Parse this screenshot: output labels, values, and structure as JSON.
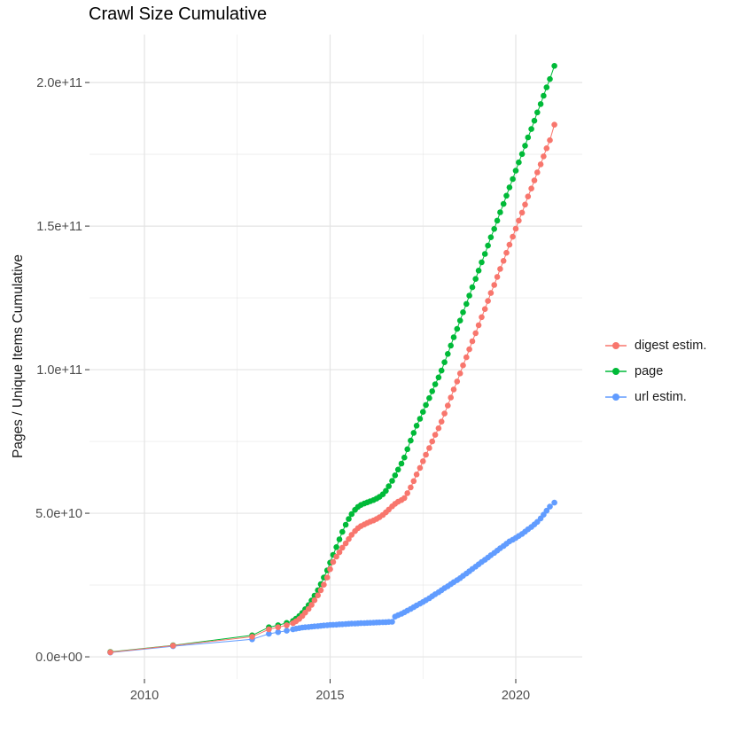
{
  "chart_data": {
    "type": "line",
    "title": "Crawl Size Cumulative",
    "xlabel": "",
    "ylabel": "Pages / Unique Items Cumulative",
    "legend_position": "right",
    "grid": true,
    "value_unit_exponent": 9,
    "x_axis": {
      "ticks": [
        2010,
        2015,
        2020
      ],
      "tick_labels": [
        "2010",
        "2015",
        "2020"
      ],
      "minor_ticks": [
        2012.5,
        2017.5
      ],
      "range": [
        2008.52,
        2021.79
      ]
    },
    "y_axis": {
      "ticks": [
        0,
        50,
        100,
        150,
        200
      ],
      "tick_labels": [
        "0.0e+00",
        "5.0e+10",
        "1.0e+11",
        "1.5e+11",
        "2.0e+11"
      ],
      "minor_ticks": [
        25,
        75,
        125,
        175
      ],
      "range": [
        -7.7,
        216.7
      ]
    },
    "series": [
      {
        "name": "digest estim.",
        "color": "#F8766D",
        "points": [
          [
            2009.08,
            1.6
          ],
          [
            2010.77,
            3.9
          ],
          [
            2012.9,
            7.0
          ],
          [
            2013.35,
            9.6
          ],
          [
            2013.6,
            10.3
          ],
          [
            2013.83,
            11.0
          ],
          [
            2014.0,
            11.7
          ],
          [
            2014.08,
            12.4
          ],
          [
            2014.17,
            13.2
          ],
          [
            2014.25,
            14.2
          ],
          [
            2014.33,
            15.4
          ],
          [
            2014.42,
            16.7
          ],
          [
            2014.5,
            18.1
          ],
          [
            2014.58,
            19.7
          ],
          [
            2014.67,
            21.4
          ],
          [
            2014.75,
            23.2
          ],
          [
            2014.83,
            25.1
          ],
          [
            2014.92,
            27.6
          ],
          [
            2015.0,
            30.5
          ],
          [
            2015.08,
            33.0
          ],
          [
            2015.17,
            34.9
          ],
          [
            2015.25,
            36.4
          ],
          [
            2015.33,
            38.0
          ],
          [
            2015.42,
            39.5
          ],
          [
            2015.5,
            41.0
          ],
          [
            2015.58,
            42.5
          ],
          [
            2015.67,
            43.8
          ],
          [
            2015.75,
            44.8
          ],
          [
            2015.83,
            45.5
          ],
          [
            2015.92,
            46.1
          ],
          [
            2016.0,
            46.6
          ],
          [
            2016.08,
            47.1
          ],
          [
            2016.17,
            47.5
          ],
          [
            2016.25,
            48.0
          ],
          [
            2016.33,
            48.6
          ],
          [
            2016.42,
            49.4
          ],
          [
            2016.5,
            50.3
          ],
          [
            2016.58,
            51.3
          ],
          [
            2016.67,
            52.4
          ],
          [
            2016.75,
            53.3
          ],
          [
            2016.83,
            54.0
          ],
          [
            2016.92,
            54.6
          ],
          [
            2017.0,
            55.3
          ],
          [
            2017.08,
            57.0
          ],
          [
            2017.17,
            59.0
          ],
          [
            2017.25,
            61.2
          ],
          [
            2017.33,
            63.5
          ],
          [
            2017.42,
            65.8
          ],
          [
            2017.5,
            68.1
          ],
          [
            2017.58,
            70.4
          ],
          [
            2017.67,
            72.7
          ],
          [
            2017.75,
            75.0
          ],
          [
            2017.83,
            77.3
          ],
          [
            2017.92,
            79.6
          ],
          [
            2018.0,
            81.9
          ],
          [
            2018.08,
            84.7
          ],
          [
            2018.17,
            87.5
          ],
          [
            2018.25,
            90.3
          ],
          [
            2018.33,
            93.1
          ],
          [
            2018.42,
            95.9
          ],
          [
            2018.5,
            98.7
          ],
          [
            2018.58,
            101.5
          ],
          [
            2018.67,
            104.3
          ],
          [
            2018.75,
            107.1
          ],
          [
            2018.83,
            109.9
          ],
          [
            2018.92,
            112.7
          ],
          [
            2019.0,
            115.5
          ],
          [
            2019.08,
            118.3
          ],
          [
            2019.17,
            121.1
          ],
          [
            2019.25,
            123.9
          ],
          [
            2019.33,
            126.7
          ],
          [
            2019.42,
            129.5
          ],
          [
            2019.5,
            132.3
          ],
          [
            2019.58,
            135.1
          ],
          [
            2019.67,
            137.9
          ],
          [
            2019.75,
            140.7
          ],
          [
            2019.83,
            143.5
          ],
          [
            2019.92,
            146.3
          ],
          [
            2020.0,
            149.1
          ],
          [
            2020.08,
            151.9
          ],
          [
            2020.17,
            154.7
          ],
          [
            2020.25,
            157.5
          ],
          [
            2020.33,
            160.3
          ],
          [
            2020.42,
            163.1
          ],
          [
            2020.5,
            165.9
          ],
          [
            2020.58,
            168.7
          ],
          [
            2020.67,
            171.5
          ],
          [
            2020.75,
            174.3
          ],
          [
            2020.83,
            177.1
          ],
          [
            2020.92,
            179.9
          ],
          [
            2021.04,
            185.3
          ]
        ]
      },
      {
        "name": "page",
        "color": "#00BA38",
        "points": [
          [
            2009.08,
            1.7
          ],
          [
            2010.77,
            4.0
          ],
          [
            2012.9,
            7.5
          ],
          [
            2013.35,
            10.3
          ],
          [
            2013.6,
            11.0
          ],
          [
            2013.83,
            11.8
          ],
          [
            2014.0,
            12.5
          ],
          [
            2014.08,
            13.3
          ],
          [
            2014.17,
            14.2
          ],
          [
            2014.25,
            15.3
          ],
          [
            2014.33,
            16.6
          ],
          [
            2014.42,
            18.0
          ],
          [
            2014.5,
            19.6
          ],
          [
            2014.58,
            21.3
          ],
          [
            2014.67,
            23.2
          ],
          [
            2014.75,
            25.3
          ],
          [
            2014.83,
            27.6
          ],
          [
            2014.92,
            30.1
          ],
          [
            2015.0,
            32.8
          ],
          [
            2015.08,
            35.5
          ],
          [
            2015.17,
            38.2
          ],
          [
            2015.25,
            40.9
          ],
          [
            2015.33,
            43.5
          ],
          [
            2015.42,
            46.0
          ],
          [
            2015.5,
            48.0
          ],
          [
            2015.58,
            49.7
          ],
          [
            2015.67,
            51.2
          ],
          [
            2015.75,
            52.2
          ],
          [
            2015.83,
            52.9
          ],
          [
            2015.92,
            53.4
          ],
          [
            2016.0,
            53.8
          ],
          [
            2016.08,
            54.2
          ],
          [
            2016.17,
            54.6
          ],
          [
            2016.25,
            55.1
          ],
          [
            2016.33,
            55.7
          ],
          [
            2016.42,
            56.6
          ],
          [
            2016.5,
            57.8
          ],
          [
            2016.58,
            59.4
          ],
          [
            2016.67,
            61.3
          ],
          [
            2016.75,
            63.2
          ],
          [
            2016.83,
            65.2
          ],
          [
            2016.92,
            67.3
          ],
          [
            2017.0,
            69.4
          ],
          [
            2017.08,
            72.3
          ],
          [
            2017.17,
            75.3
          ],
          [
            2017.25,
            78.0
          ],
          [
            2017.33,
            80.5
          ],
          [
            2017.42,
            82.9
          ],
          [
            2017.5,
            85.3
          ],
          [
            2017.58,
            87.7
          ],
          [
            2017.67,
            90.1
          ],
          [
            2017.75,
            92.5
          ],
          [
            2017.83,
            94.9
          ],
          [
            2017.92,
            97.3
          ],
          [
            2018.0,
            99.7
          ],
          [
            2018.08,
            102.6
          ],
          [
            2018.17,
            105.5
          ],
          [
            2018.25,
            108.4
          ],
          [
            2018.33,
            111.3
          ],
          [
            2018.42,
            114.2
          ],
          [
            2018.5,
            117.1
          ],
          [
            2018.58,
            120.0
          ],
          [
            2018.67,
            122.9
          ],
          [
            2018.75,
            125.8
          ],
          [
            2018.83,
            128.7
          ],
          [
            2018.92,
            131.6
          ],
          [
            2019.0,
            134.5
          ],
          [
            2019.08,
            137.4
          ],
          [
            2019.17,
            140.3
          ],
          [
            2019.25,
            143.2
          ],
          [
            2019.33,
            146.1
          ],
          [
            2019.42,
            149.0
          ],
          [
            2019.5,
            151.9
          ],
          [
            2019.58,
            154.8
          ],
          [
            2019.67,
            157.7
          ],
          [
            2019.75,
            160.6
          ],
          [
            2019.83,
            163.5
          ],
          [
            2019.92,
            166.4
          ],
          [
            2020.0,
            169.3
          ],
          [
            2020.08,
            172.2
          ],
          [
            2020.17,
            175.1
          ],
          [
            2020.25,
            178.0
          ],
          [
            2020.33,
            180.9
          ],
          [
            2020.42,
            183.8
          ],
          [
            2020.5,
            186.7
          ],
          [
            2020.58,
            189.6
          ],
          [
            2020.67,
            192.5
          ],
          [
            2020.75,
            195.4
          ],
          [
            2020.83,
            198.3
          ],
          [
            2020.92,
            201.2
          ],
          [
            2021.04,
            205.8
          ]
        ]
      },
      {
        "name": "url estim.",
        "color": "#619CFF",
        "points": [
          [
            2009.08,
            1.5
          ],
          [
            2010.77,
            3.7
          ],
          [
            2012.9,
            6.1
          ],
          [
            2013.35,
            8.0
          ],
          [
            2013.6,
            8.6
          ],
          [
            2013.83,
            9.1
          ],
          [
            2014.0,
            9.6
          ],
          [
            2014.08,
            9.8
          ],
          [
            2014.17,
            10.0
          ],
          [
            2014.25,
            10.2
          ],
          [
            2014.33,
            10.3
          ],
          [
            2014.42,
            10.4
          ],
          [
            2014.5,
            10.5
          ],
          [
            2014.58,
            10.6
          ],
          [
            2014.67,
            10.7
          ],
          [
            2014.75,
            10.8
          ],
          [
            2014.83,
            10.9
          ],
          [
            2014.92,
            11.0
          ],
          [
            2015.0,
            11.1
          ],
          [
            2015.08,
            11.15
          ],
          [
            2015.17,
            11.2
          ],
          [
            2015.25,
            11.3
          ],
          [
            2015.33,
            11.35
          ],
          [
            2015.42,
            11.4
          ],
          [
            2015.5,
            11.5
          ],
          [
            2015.58,
            11.55
          ],
          [
            2015.67,
            11.6
          ],
          [
            2015.75,
            11.65
          ],
          [
            2015.83,
            11.7
          ],
          [
            2015.92,
            11.75
          ],
          [
            2016.0,
            11.8
          ],
          [
            2016.08,
            11.85
          ],
          [
            2016.17,
            11.9
          ],
          [
            2016.25,
            11.95
          ],
          [
            2016.33,
            12.0
          ],
          [
            2016.42,
            12.05
          ],
          [
            2016.5,
            12.1
          ],
          [
            2016.58,
            12.15
          ],
          [
            2016.67,
            12.2
          ],
          [
            2016.75,
            14.0
          ],
          [
            2016.83,
            14.5
          ],
          [
            2016.92,
            15.0
          ],
          [
            2017.0,
            15.5
          ],
          [
            2017.08,
            16.1
          ],
          [
            2017.17,
            16.7
          ],
          [
            2017.25,
            17.3
          ],
          [
            2017.33,
            17.9
          ],
          [
            2017.42,
            18.5
          ],
          [
            2017.5,
            19.1
          ],
          [
            2017.58,
            19.7
          ],
          [
            2017.67,
            20.4
          ],
          [
            2017.75,
            21.1
          ],
          [
            2017.83,
            21.8
          ],
          [
            2017.92,
            22.5
          ],
          [
            2018.0,
            23.2
          ],
          [
            2018.08,
            23.9
          ],
          [
            2018.17,
            24.6
          ],
          [
            2018.25,
            25.3
          ],
          [
            2018.33,
            26.0
          ],
          [
            2018.42,
            26.7
          ],
          [
            2018.5,
            27.4
          ],
          [
            2018.58,
            28.2
          ],
          [
            2018.67,
            29.0
          ],
          [
            2018.75,
            29.8
          ],
          [
            2018.83,
            30.6
          ],
          [
            2018.92,
            31.4
          ],
          [
            2019.0,
            32.2
          ],
          [
            2019.08,
            33.0
          ],
          [
            2019.17,
            33.8
          ],
          [
            2019.25,
            34.6
          ],
          [
            2019.33,
            35.4
          ],
          [
            2019.42,
            36.2
          ],
          [
            2019.5,
            37.0
          ],
          [
            2019.58,
            37.8
          ],
          [
            2019.67,
            38.6
          ],
          [
            2019.75,
            39.4
          ],
          [
            2019.83,
            40.2
          ],
          [
            2019.92,
            40.8
          ],
          [
            2020.0,
            41.4
          ],
          [
            2020.08,
            42.1
          ],
          [
            2020.17,
            42.8
          ],
          [
            2020.25,
            43.6
          ],
          [
            2020.33,
            44.4
          ],
          [
            2020.42,
            45.2
          ],
          [
            2020.5,
            46.1
          ],
          [
            2020.58,
            47.0
          ],
          [
            2020.67,
            48.2
          ],
          [
            2020.75,
            49.5
          ],
          [
            2020.83,
            50.9
          ],
          [
            2020.92,
            52.3
          ],
          [
            2021.04,
            53.7
          ]
        ]
      }
    ]
  }
}
